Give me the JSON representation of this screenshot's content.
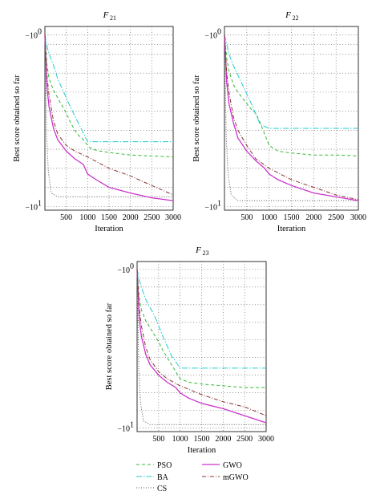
{
  "colors": {
    "PSO": "#33bb33",
    "BA": "#22cccc",
    "CS": "#555555",
    "GWO": "#cc33cc",
    "mGWO": "#883333",
    "grid": "#555555"
  },
  "legend": [
    {
      "name": "PSO",
      "style": "dashed"
    },
    {
      "name": "GWO",
      "style": "solid"
    },
    {
      "name": "BA",
      "style": "dashdot"
    },
    {
      "name": "mGWO",
      "style": "dashdot2"
    },
    {
      "name": "CS",
      "style": "dotted"
    }
  ],
  "chart_data": [
    {
      "type": "line",
      "title": "F",
      "title_sub": "21",
      "xlabel": "Iteration",
      "ylabel": "Best score obtained so far",
      "xlim": [
        0,
        3000
      ],
      "xticks": [
        "500",
        "1000",
        "1500",
        "2000",
        "2500",
        "3000"
      ],
      "ytick_labels": [
        {
          "base": "−10",
          "exp": "0"
        },
        {
          "base": "−10",
          "exp": "1"
        }
      ],
      "yscale": "log (negative)",
      "grid": true,
      "series": [
        {
          "name": "PSO",
          "x": [
            0,
            50,
            100,
            200,
            300,
            400,
            500,
            600,
            700,
            800,
            900,
            1000,
            1100,
            1300,
            1600,
            2000,
            2500,
            3000
          ],
          "y": [
            -1.0,
            -2.6,
            -3.3,
            -3.9,
            -4.3,
            -4.7,
            -5.1,
            -5.6,
            -6.0,
            -6.3,
            -6.5,
            -6.8,
            -7.0,
            -7.1,
            -7.2,
            -7.3,
            -7.35,
            -7.4
          ]
        },
        {
          "name": "BA",
          "x": [
            0,
            50,
            100,
            200,
            300,
            600,
            1000,
            1500,
            2000,
            2500,
            3000
          ],
          "y": [
            -1.0,
            -1.6,
            -2.0,
            -2.6,
            -3.3,
            -4.8,
            -6.6,
            -6.6,
            -6.6,
            -6.6,
            -6.6
          ]
        },
        {
          "name": "CS",
          "x": [
            0,
            40,
            80,
            150,
            300,
            3000
          ],
          "y": [
            -1.0,
            -6.2,
            -8.2,
            -9.3,
            -9.5,
            -9.5
          ]
        },
        {
          "name": "GWO",
          "x": [
            0,
            50,
            100,
            200,
            300,
            500,
            700,
            900,
            1000,
            1200,
            1500,
            2000,
            2500,
            3000
          ],
          "y": [
            -1.0,
            -3.8,
            -4.8,
            -5.9,
            -6.5,
            -7.1,
            -7.5,
            -7.8,
            -8.3,
            -8.6,
            -9.0,
            -9.3,
            -9.55,
            -9.7
          ]
        },
        {
          "name": "mGWO",
          "x": [
            0,
            50,
            100,
            200,
            300,
            500,
            700,
            1000,
            1500,
            2000,
            2500,
            3000
          ],
          "y": [
            -1.0,
            -3.2,
            -4.2,
            -5.5,
            -6.2,
            -6.8,
            -7.1,
            -7.4,
            -8.0,
            -8.4,
            -8.9,
            -9.4
          ]
        }
      ]
    },
    {
      "type": "line",
      "title": "F",
      "title_sub": "22",
      "xlabel": "Iteration",
      "ylabel": "Best score obtained so far",
      "xlim": [
        0,
        3000
      ],
      "xticks": [
        "500",
        "1000",
        "1500",
        "2000",
        "2500",
        "3000"
      ],
      "ytick_labels": [
        {
          "base": "−10",
          "exp": "0"
        },
        {
          "base": "−10",
          "exp": "1"
        }
      ],
      "yscale": "log (negative)",
      "grid": true,
      "series": [
        {
          "name": "PSO",
          "x": [
            0,
            50,
            100,
            200,
            300,
            400,
            500,
            600,
            700,
            800,
            900,
            1000,
            1200,
            1500,
            2000,
            2500,
            3000
          ],
          "y": [
            -1.0,
            -2.2,
            -2.9,
            -3.6,
            -4.0,
            -4.3,
            -4.6,
            -4.9,
            -5.1,
            -5.6,
            -6.2,
            -6.8,
            -7.1,
            -7.2,
            -7.3,
            -7.3,
            -7.35
          ]
        },
        {
          "name": "BA",
          "x": [
            0,
            50,
            100,
            200,
            400,
            600,
            800,
            1000,
            1500,
            2000,
            2500,
            3000
          ],
          "y": [
            -1.0,
            -1.5,
            -2.0,
            -2.6,
            -3.6,
            -4.6,
            -5.7,
            -5.9,
            -5.9,
            -5.9,
            -5.9,
            -5.9
          ]
        },
        {
          "name": "CS",
          "x": [
            0,
            40,
            80,
            150,
            300,
            3000
          ],
          "y": [
            -1.0,
            -6.4,
            -8.3,
            -9.4,
            -9.7,
            -9.7
          ]
        },
        {
          "name": "GWO",
          "x": [
            0,
            50,
            100,
            200,
            300,
            500,
            700,
            900,
            1000,
            1200,
            1500,
            2000,
            2500,
            3000
          ],
          "y": [
            -1.0,
            -3.5,
            -4.6,
            -5.6,
            -6.4,
            -7.1,
            -7.6,
            -8.0,
            -8.3,
            -8.6,
            -8.9,
            -9.3,
            -9.5,
            -9.7
          ]
        },
        {
          "name": "mGWO",
          "x": [
            0,
            50,
            100,
            200,
            300,
            500,
            700,
            1000,
            1500,
            2000,
            2500,
            3000
          ],
          "y": [
            -1.0,
            -3.0,
            -4.0,
            -5.3,
            -6.0,
            -6.8,
            -7.5,
            -8.0,
            -8.6,
            -9.0,
            -9.4,
            -9.65
          ]
        }
      ]
    },
    {
      "type": "line",
      "title": "F",
      "title_sub": "23",
      "xlabel": "Iteration",
      "ylabel": "Best score obtained so far",
      "xlim": [
        0,
        3000
      ],
      "xticks": [
        "500",
        "1000",
        "1500",
        "2000",
        "2500",
        "3000"
      ],
      "ytick_labels": [
        {
          "base": "−10",
          "exp": "0"
        },
        {
          "base": "−10",
          "exp": "1"
        }
      ],
      "yscale": "log (negative)",
      "grid": true,
      "series": [
        {
          "name": "PSO",
          "x": [
            0,
            50,
            100,
            200,
            300,
            400,
            500,
            600,
            700,
            800,
            900,
            1000,
            1200,
            1500,
            2000,
            2500,
            3000
          ],
          "y": [
            -1.0,
            -2.6,
            -3.3,
            -3.9,
            -4.3,
            -4.7,
            -5.1,
            -5.6,
            -6.0,
            -6.4,
            -6.8,
            -7.2,
            -7.4,
            -7.5,
            -7.6,
            -7.7,
            -7.7
          ]
        },
        {
          "name": "BA",
          "x": [
            0,
            50,
            100,
            200,
            400,
            600,
            800,
            1000,
            1500,
            2000,
            2500,
            3000
          ],
          "y": [
            -1.0,
            -1.6,
            -2.0,
            -2.7,
            -3.6,
            -4.8,
            -5.9,
            -6.6,
            -6.6,
            -6.6,
            -6.6,
            -6.6
          ]
        },
        {
          "name": "CS",
          "x": [
            0,
            40,
            80,
            150,
            300,
            3000
          ],
          "y": [
            -1.0,
            -6.6,
            -8.6,
            -9.6,
            -9.8,
            -9.8
          ]
        },
        {
          "name": "GWO",
          "x": [
            0,
            50,
            100,
            200,
            300,
            500,
            700,
            900,
            1000,
            1200,
            1500,
            2000,
            2500,
            3000
          ],
          "y": [
            -1.0,
            -3.8,
            -4.8,
            -5.8,
            -6.4,
            -7.0,
            -7.4,
            -7.7,
            -8.0,
            -8.3,
            -8.6,
            -8.9,
            -9.3,
            -9.7
          ]
        },
        {
          "name": "mGWO",
          "x": [
            0,
            50,
            100,
            200,
            300,
            500,
            700,
            1000,
            1500,
            2000,
            2500,
            3000
          ],
          "y": [
            -1.0,
            -3.2,
            -4.2,
            -5.4,
            -6.1,
            -6.8,
            -7.2,
            -7.6,
            -8.1,
            -8.5,
            -8.8,
            -9.3
          ]
        }
      ]
    }
  ]
}
